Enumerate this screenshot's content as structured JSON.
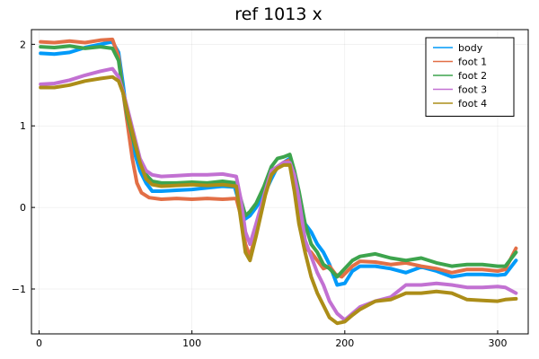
{
  "chart_data": {
    "type": "line",
    "title": "ref 1013 x",
    "xlabel": "",
    "ylabel": "",
    "xlim": [
      -5,
      320
    ],
    "ylim": [
      -1.55,
      2.18
    ],
    "x_ticks": [
      0,
      100,
      200,
      300
    ],
    "x_tick_labels": [
      "0",
      "100",
      "200",
      "300"
    ],
    "y_ticks": [
      -1,
      0,
      1,
      2
    ],
    "y_tick_labels": [
      "−1",
      "0",
      "1",
      "2"
    ],
    "grid": true,
    "legend_position": "top-right",
    "series": [
      {
        "name": "body",
        "color": "#009af9",
        "points": [
          [
            1,
            1.89
          ],
          [
            10,
            1.88
          ],
          [
            20,
            1.9
          ],
          [
            30,
            1.96
          ],
          [
            40,
            2.0
          ],
          [
            48,
            2.03
          ],
          [
            52,
            1.9
          ],
          [
            55,
            1.5
          ],
          [
            58,
            1.05
          ],
          [
            62,
            0.7
          ],
          [
            66,
            0.45
          ],
          [
            70,
            0.3
          ],
          [
            74,
            0.2
          ],
          [
            80,
            0.2
          ],
          [
            90,
            0.21
          ],
          [
            100,
            0.22
          ],
          [
            110,
            0.24
          ],
          [
            120,
            0.26
          ],
          [
            128,
            0.25
          ],
          [
            131,
            0.05
          ],
          [
            134,
            -0.15
          ],
          [
            138,
            -0.1
          ],
          [
            142,
            0.0
          ],
          [
            147,
            0.15
          ],
          [
            152,
            0.35
          ],
          [
            156,
            0.5
          ],
          [
            160,
            0.55
          ],
          [
            164,
            0.6
          ],
          [
            167,
            0.4
          ],
          [
            170,
            0.1
          ],
          [
            174,
            -0.2
          ],
          [
            178,
            -0.3
          ],
          [
            182,
            -0.45
          ],
          [
            186,
            -0.55
          ],
          [
            190,
            -0.7
          ],
          [
            195,
            -0.95
          ],
          [
            200,
            -0.93
          ],
          [
            205,
            -0.78
          ],
          [
            210,
            -0.72
          ],
          [
            220,
            -0.72
          ],
          [
            230,
            -0.75
          ],
          [
            240,
            -0.8
          ],
          [
            250,
            -0.73
          ],
          [
            260,
            -0.78
          ],
          [
            270,
            -0.85
          ],
          [
            280,
            -0.82
          ],
          [
            290,
            -0.82
          ],
          [
            300,
            -0.83
          ],
          [
            305,
            -0.82
          ],
          [
            312,
            -0.65
          ]
        ]
      },
      {
        "name": "foot 1",
        "color": "#e26f46",
        "points": [
          [
            1,
            2.03
          ],
          [
            10,
            2.02
          ],
          [
            20,
            2.04
          ],
          [
            30,
            2.02
          ],
          [
            40,
            2.05
          ],
          [
            48,
            2.06
          ],
          [
            52,
            1.85
          ],
          [
            55,
            1.4
          ],
          [
            58,
            1.0
          ],
          [
            61,
            0.6
          ],
          [
            64,
            0.3
          ],
          [
            67,
            0.18
          ],
          [
            72,
            0.12
          ],
          [
            80,
            0.1
          ],
          [
            90,
            0.11
          ],
          [
            100,
            0.1
          ],
          [
            110,
            0.11
          ],
          [
            120,
            0.1
          ],
          [
            129,
            0.11
          ],
          [
            132,
            -0.1
          ],
          [
            135,
            -0.45
          ],
          [
            138,
            -0.6
          ],
          [
            142,
            -0.3
          ],
          [
            148,
            0.2
          ],
          [
            152,
            0.45
          ],
          [
            156,
            0.5
          ],
          [
            160,
            0.55
          ],
          [
            164,
            0.58
          ],
          [
            167,
            0.3
          ],
          [
            170,
            -0.05
          ],
          [
            174,
            -0.5
          ],
          [
            178,
            -0.55
          ],
          [
            182,
            -0.65
          ],
          [
            186,
            -0.75
          ],
          [
            190,
            -0.72
          ],
          [
            194,
            -0.82
          ],
          [
            198,
            -0.85
          ],
          [
            205,
            -0.72
          ],
          [
            210,
            -0.66
          ],
          [
            220,
            -0.67
          ],
          [
            230,
            -0.7
          ],
          [
            240,
            -0.68
          ],
          [
            250,
            -0.72
          ],
          [
            260,
            -0.75
          ],
          [
            270,
            -0.8
          ],
          [
            280,
            -0.76
          ],
          [
            290,
            -0.76
          ],
          [
            300,
            -0.78
          ],
          [
            305,
            -0.76
          ],
          [
            312,
            -0.5
          ]
        ]
      },
      {
        "name": "foot 2",
        "color": "#3da44d",
        "points": [
          [
            1,
            1.97
          ],
          [
            10,
            1.96
          ],
          [
            20,
            1.98
          ],
          [
            30,
            1.95
          ],
          [
            40,
            1.97
          ],
          [
            48,
            1.95
          ],
          [
            52,
            1.8
          ],
          [
            55,
            1.4
          ],
          [
            58,
            1.1
          ],
          [
            62,
            0.8
          ],
          [
            66,
            0.55
          ],
          [
            70,
            0.4
          ],
          [
            74,
            0.32
          ],
          [
            80,
            0.3
          ],
          [
            90,
            0.3
          ],
          [
            100,
            0.31
          ],
          [
            110,
            0.3
          ],
          [
            120,
            0.32
          ],
          [
            129,
            0.3
          ],
          [
            132,
            0.1
          ],
          [
            135,
            -0.1
          ],
          [
            138,
            -0.05
          ],
          [
            142,
            0.05
          ],
          [
            147,
            0.25
          ],
          [
            152,
            0.5
          ],
          [
            156,
            0.6
          ],
          [
            160,
            0.62
          ],
          [
            164,
            0.65
          ],
          [
            167,
            0.45
          ],
          [
            170,
            0.2
          ],
          [
            174,
            -0.2
          ],
          [
            178,
            -0.45
          ],
          [
            182,
            -0.55
          ],
          [
            186,
            -0.7
          ],
          [
            190,
            -0.75
          ],
          [
            195,
            -0.85
          ],
          [
            200,
            -0.75
          ],
          [
            205,
            -0.65
          ],
          [
            210,
            -0.6
          ],
          [
            220,
            -0.57
          ],
          [
            230,
            -0.62
          ],
          [
            240,
            -0.65
          ],
          [
            250,
            -0.62
          ],
          [
            260,
            -0.68
          ],
          [
            270,
            -0.72
          ],
          [
            280,
            -0.7
          ],
          [
            290,
            -0.7
          ],
          [
            300,
            -0.72
          ],
          [
            305,
            -0.72
          ],
          [
            312,
            -0.55
          ]
        ]
      },
      {
        "name": "foot 3",
        "color": "#c271d2",
        "points": [
          [
            1,
            1.51
          ],
          [
            10,
            1.52
          ],
          [
            20,
            1.56
          ],
          [
            30,
            1.62
          ],
          [
            40,
            1.67
          ],
          [
            48,
            1.7
          ],
          [
            52,
            1.6
          ],
          [
            55,
            1.42
          ],
          [
            58,
            1.2
          ],
          [
            62,
            0.9
          ],
          [
            66,
            0.6
          ],
          [
            70,
            0.45
          ],
          [
            74,
            0.4
          ],
          [
            80,
            0.38
          ],
          [
            90,
            0.39
          ],
          [
            100,
            0.4
          ],
          [
            110,
            0.4
          ],
          [
            120,
            0.41
          ],
          [
            129,
            0.38
          ],
          [
            132,
            0.1
          ],
          [
            135,
            -0.3
          ],
          [
            138,
            -0.45
          ],
          [
            142,
            -0.2
          ],
          [
            148,
            0.2
          ],
          [
            152,
            0.45
          ],
          [
            156,
            0.5
          ],
          [
            160,
            0.55
          ],
          [
            164,
            0.55
          ],
          [
            167,
            0.4
          ],
          [
            170,
            0.1
          ],
          [
            174,
            -0.4
          ],
          [
            178,
            -0.6
          ],
          [
            182,
            -0.8
          ],
          [
            186,
            -0.95
          ],
          [
            190,
            -1.15
          ],
          [
            195,
            -1.3
          ],
          [
            200,
            -1.38
          ],
          [
            205,
            -1.3
          ],
          [
            210,
            -1.22
          ],
          [
            220,
            -1.15
          ],
          [
            230,
            -1.1
          ],
          [
            240,
            -0.95
          ],
          [
            250,
            -0.95
          ],
          [
            260,
            -0.93
          ],
          [
            270,
            -0.95
          ],
          [
            280,
            -0.98
          ],
          [
            290,
            -0.98
          ],
          [
            300,
            -0.97
          ],
          [
            305,
            -0.98
          ],
          [
            312,
            -1.05
          ]
        ]
      },
      {
        "name": "foot 4",
        "color": "#ac8d18",
        "points": [
          [
            1,
            1.47
          ],
          [
            10,
            1.47
          ],
          [
            20,
            1.5
          ],
          [
            30,
            1.55
          ],
          [
            40,
            1.58
          ],
          [
            48,
            1.6
          ],
          [
            52,
            1.55
          ],
          [
            55,
            1.4
          ],
          [
            58,
            1.15
          ],
          [
            62,
            0.85
          ],
          [
            66,
            0.55
          ],
          [
            70,
            0.35
          ],
          [
            74,
            0.28
          ],
          [
            80,
            0.26
          ],
          [
            90,
            0.27
          ],
          [
            100,
            0.28
          ],
          [
            110,
            0.27
          ],
          [
            120,
            0.28
          ],
          [
            129,
            0.26
          ],
          [
            132,
            -0.15
          ],
          [
            135,
            -0.55
          ],
          [
            138,
            -0.65
          ],
          [
            142,
            -0.35
          ],
          [
            148,
            0.15
          ],
          [
            152,
            0.4
          ],
          [
            156,
            0.48
          ],
          [
            160,
            0.52
          ],
          [
            164,
            0.52
          ],
          [
            167,
            0.2
          ],
          [
            170,
            -0.2
          ],
          [
            174,
            -0.55
          ],
          [
            178,
            -0.85
          ],
          [
            182,
            -1.05
          ],
          [
            186,
            -1.2
          ],
          [
            190,
            -1.35
          ],
          [
            195,
            -1.42
          ],
          [
            200,
            -1.4
          ],
          [
            205,
            -1.32
          ],
          [
            210,
            -1.25
          ],
          [
            220,
            -1.15
          ],
          [
            230,
            -1.13
          ],
          [
            240,
            -1.05
          ],
          [
            250,
            -1.05
          ],
          [
            260,
            -1.03
          ],
          [
            270,
            -1.05
          ],
          [
            280,
            -1.13
          ],
          [
            290,
            -1.14
          ],
          [
            300,
            -1.15
          ],
          [
            305,
            -1.13
          ],
          [
            312,
            -1.12
          ]
        ]
      }
    ]
  }
}
